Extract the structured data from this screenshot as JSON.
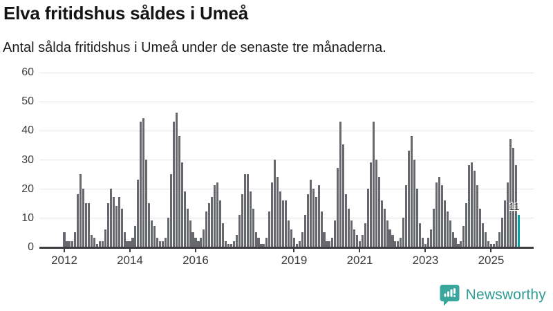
{
  "header": {
    "title": "Elva fritidshus såldes i Umeå",
    "subtitle": "Antal sålda fritidshus i Umeå under de senaste tre månaderna."
  },
  "chart_data": {
    "type": "bar",
    "title": "Elva fritidshus såldes i Umeå",
    "subtitle": "Antal sålda fritidshus i Umeå under de senaste tre månaderna.",
    "ylim": [
      0,
      60
    ],
    "yticks": [
      0,
      10,
      20,
      30,
      40,
      50,
      60
    ],
    "grid": true,
    "bar_color": "#67686d",
    "highlight_color": "#00a2a6",
    "x_axis": {
      "tick_labels": [
        "2012",
        "2014",
        "2016",
        "2019",
        "2021",
        "2023",
        "2025"
      ],
      "tick_month_offsets": [
        0,
        24,
        48,
        84,
        108,
        132,
        156
      ]
    },
    "start_month": "2012-01",
    "years": [
      {
        "year": "2012",
        "monthly": [
          5,
          2,
          2,
          2,
          5,
          18,
          25,
          20,
          15,
          15,
          4,
          3
        ]
      },
      {
        "year": "2013",
        "monthly": [
          1,
          2,
          2,
          6,
          15,
          20,
          17,
          14,
          17,
          13,
          5,
          2
        ]
      },
      {
        "year": "2014",
        "monthly": [
          2,
          3,
          7,
          23,
          43,
          44,
          30,
          15,
          9,
          7,
          3,
          2
        ]
      },
      {
        "year": "2015",
        "monthly": [
          2,
          3,
          10,
          25,
          43,
          46,
          38,
          29,
          19,
          13,
          9,
          5
        ]
      },
      {
        "year": "2016",
        "monthly": [
          3,
          2,
          3,
          6,
          12,
          15,
          17,
          21,
          22,
          16,
          8,
          2
        ]
      },
      {
        "year": "2017",
        "monthly": [
          1,
          1,
          2,
          4,
          11,
          18,
          25,
          25,
          19,
          13,
          5,
          3
        ]
      },
      {
        "year": "2018",
        "monthly": [
          1,
          1,
          3,
          12,
          22,
          30,
          24,
          19,
          16,
          16,
          9,
          6
        ]
      },
      {
        "year": "2019",
        "monthly": [
          3,
          1,
          2,
          5,
          11,
          18,
          23,
          20,
          17,
          21,
          12,
          5
        ]
      },
      {
        "year": "2020",
        "monthly": [
          2,
          2,
          3,
          9,
          27,
          43,
          35,
          18,
          13,
          9,
          6,
          4
        ]
      },
      {
        "year": "2021",
        "monthly": [
          2,
          4,
          8,
          20,
          29,
          43,
          30,
          24,
          16,
          13,
          9,
          6
        ]
      },
      {
        "year": "2022",
        "monthly": [
          4,
          2,
          2,
          3,
          10,
          21,
          33,
          38,
          30,
          20,
          8,
          3
        ]
      },
      {
        "year": "2023",
        "monthly": [
          1,
          3,
          6,
          13,
          22,
          24,
          21,
          16,
          12,
          9,
          5,
          3
        ]
      },
      {
        "year": "2024",
        "monthly": [
          1,
          2,
          7,
          15,
          28,
          29,
          26,
          21,
          13,
          8,
          5,
          2
        ]
      },
      {
        "year": "2025",
        "monthly": [
          1,
          1,
          2,
          5,
          10,
          16,
          22,
          37,
          34,
          28,
          11
        ]
      }
    ],
    "highlight": {
      "index": 166,
      "value": 11,
      "label": "11"
    }
  },
  "footer": {
    "brand": "Newsworthy",
    "brand_color": "#2f9d95"
  }
}
